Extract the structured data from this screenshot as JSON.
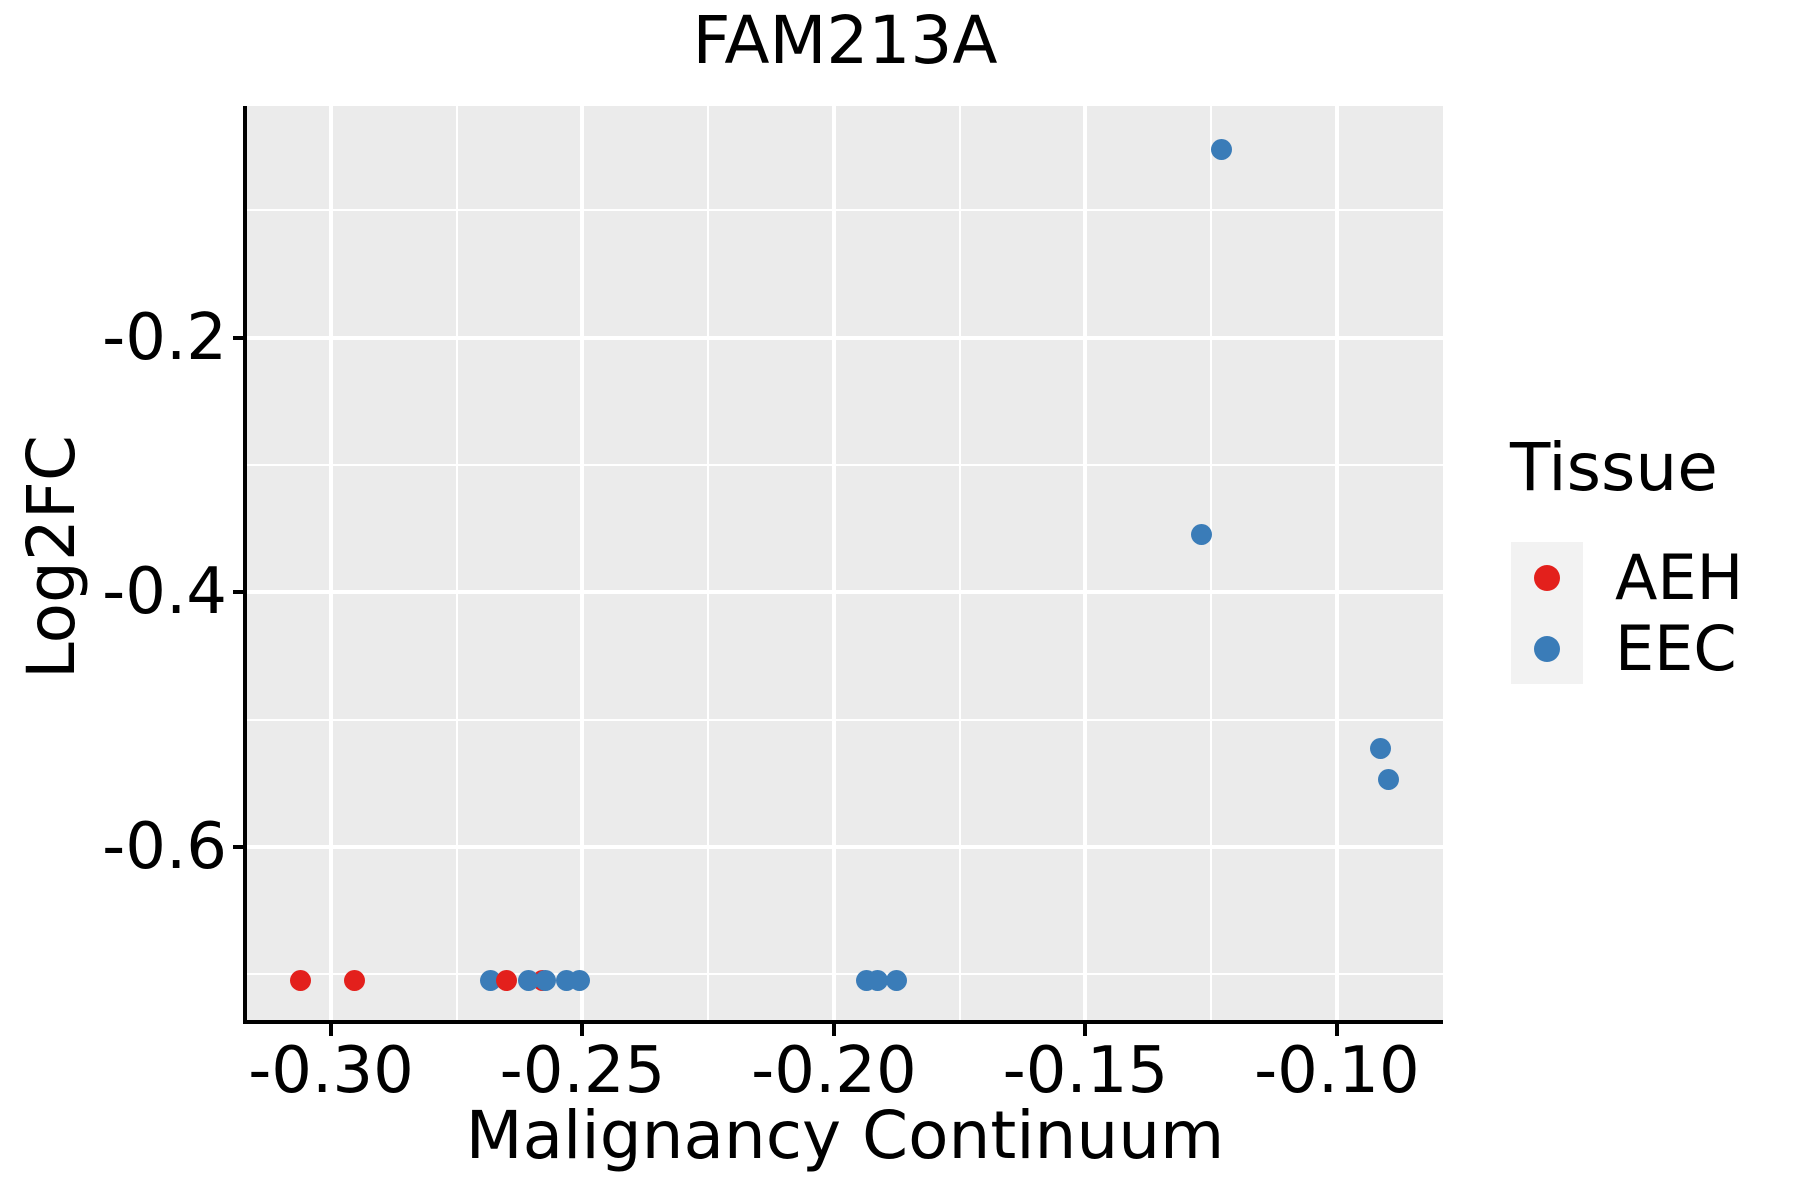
{
  "figure": {
    "background": "#FFFFFF",
    "panel_background": "#EBEBEB",
    "grid_color": "#FFFFFF",
    "axis_color": "#000000",
    "text_color": "#000000"
  },
  "chart_data": {
    "type": "scatter",
    "title": "FAM213A",
    "xlabel": "Malignancy Continuum",
    "ylabel": "Log2FC",
    "xlim": [
      -0.3167,
      -0.0789
    ],
    "ylim": [
      -0.736,
      -0.018
    ],
    "grid": {
      "major": true,
      "minor": true
    },
    "x_ticks": [
      {
        "value": -0.3,
        "label": "-0.30"
      },
      {
        "value": -0.25,
        "label": "-0.25"
      },
      {
        "value": -0.2,
        "label": "-0.20"
      },
      {
        "value": -0.15,
        "label": "-0.15"
      },
      {
        "value": -0.1,
        "label": "-0.10"
      }
    ],
    "y_ticks": [
      {
        "value": -0.2,
        "label": "-0.2"
      },
      {
        "value": -0.4,
        "label": "-0.4"
      },
      {
        "value": -0.6,
        "label": "-0.6"
      }
    ],
    "x_minor_gridlines": [
      -0.275,
      -0.225,
      -0.175,
      -0.125
    ],
    "y_minor_gridlines": [
      -0.1,
      -0.3,
      -0.5,
      -0.7
    ],
    "legend": {
      "title": "Tissue",
      "position": "right",
      "entries": [
        {
          "label": "AEH",
          "color": "#E3201C"
        },
        {
          "label": "EEC",
          "color": "#3A7CB8"
        }
      ]
    },
    "points": [
      {
        "x": -0.306,
        "y": -0.705,
        "tissue": "AEH"
      },
      {
        "x": -0.2954,
        "y": -0.705,
        "tissue": "AEH"
      },
      {
        "x": -0.2682,
        "y": -0.705,
        "tissue": "EEC"
      },
      {
        "x": -0.2652,
        "y": -0.705,
        "tissue": "AEH"
      },
      {
        "x": -0.258,
        "y": -0.705,
        "tissue": "AEH"
      },
      {
        "x": -0.2608,
        "y": -0.705,
        "tissue": "EEC"
      },
      {
        "x": -0.2573,
        "y": -0.705,
        "tissue": "EEC"
      },
      {
        "x": -0.2531,
        "y": -0.705,
        "tissue": "EEC"
      },
      {
        "x": -0.2505,
        "y": -0.705,
        "tissue": "EEC"
      },
      {
        "x": -0.1935,
        "y": -0.705,
        "tissue": "EEC"
      },
      {
        "x": -0.1913,
        "y": -0.705,
        "tissue": "EEC"
      },
      {
        "x": -0.1875,
        "y": -0.705,
        "tissue": "EEC"
      },
      {
        "x": -0.127,
        "y": -0.355,
        "tissue": "EEC"
      },
      {
        "x": -0.123,
        "y": -0.052,
        "tissue": "EEC"
      },
      {
        "x": -0.0914,
        "y": -0.523,
        "tissue": "EEC"
      },
      {
        "x": -0.0898,
        "y": -0.547,
        "tissue": "EEC"
      }
    ]
  }
}
